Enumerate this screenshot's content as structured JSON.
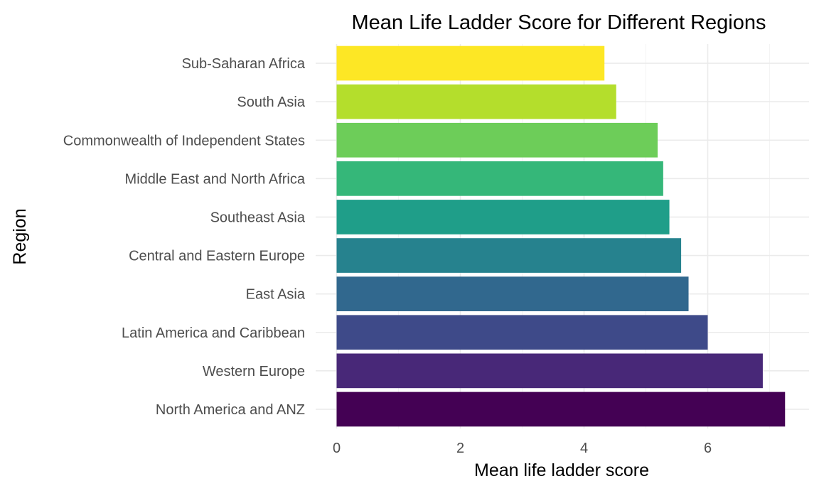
{
  "chart_data": {
    "type": "bar",
    "orientation": "horizontal",
    "title": "Mean Life Ladder Score for Different Regions",
    "xlabel": "Mean life ladder score",
    "ylabel": "Region",
    "xlim": [
      0,
      7.6
    ],
    "x_ticks": [
      0,
      2,
      4,
      6
    ],
    "grid": true,
    "legend": "none",
    "categories": [
      "North America and ANZ",
      "Western Europe",
      "Latin America and Caribbean",
      "East Asia",
      "Central and Eastern Europe",
      "Southeast Asia",
      "Middle East and North Africa",
      "Commonwealth of Independent States",
      "South Asia",
      "Sub-Saharan Africa"
    ],
    "values": [
      7.25,
      6.89,
      6.0,
      5.69,
      5.57,
      5.38,
      5.28,
      5.19,
      4.52,
      4.33
    ],
    "colors": [
      "#440154",
      "#482878",
      "#3E4A89",
      "#31688E",
      "#26828E",
      "#1F9E89",
      "#35B779",
      "#6DCD59",
      "#B4DE2C",
      "#FDE725"
    ]
  }
}
